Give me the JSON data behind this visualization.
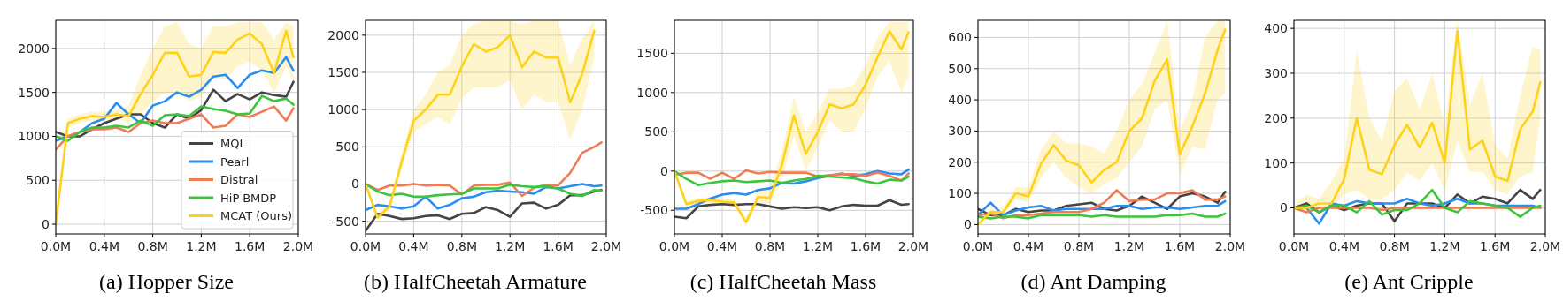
{
  "chart_data": [
    {
      "type": "line",
      "title": "(a) Hopper Size",
      "x": [
        0,
        0.1,
        0.2,
        0.3,
        0.4,
        0.5,
        0.6,
        0.7,
        0.8,
        0.9,
        1.0,
        1.1,
        1.2,
        1.3,
        1.4,
        1.5,
        1.6,
        1.7,
        1.8,
        1.9,
        1.96
      ],
      "xlim": [
        0,
        2
      ],
      "xticks": [
        {
          "value": 0,
          "label": "0.0M"
        },
        {
          "value": 0.4,
          "label": "0.4M"
        },
        {
          "value": 0.8,
          "label": "0.8M"
        },
        {
          "value": 1.2,
          "label": "1.2M"
        },
        {
          "value": 1.6,
          "label": "1.6M"
        },
        {
          "value": 2.0,
          "label": "2.0M"
        }
      ],
      "ylim": [
        -110,
        2320
      ],
      "yticks": [
        0,
        500,
        1000,
        1500,
        2000
      ],
      "grid": true,
      "legend": "bottom right",
      "marker": "none",
      "line_style": "solid",
      "series": [
        {
          "name": "MQL",
          "color": "#444444",
          "values": [
            1050,
            1000,
            1000,
            1080,
            1150,
            1200,
            1250,
            1250,
            1150,
            1100,
            1250,
            1200,
            1300,
            1530,
            1400,
            1480,
            1420,
            1500,
            1470,
            1450,
            1620
          ]
        },
        {
          "name": "Pearl",
          "color": "#2a8ef0",
          "values": [
            950,
            1000,
            1050,
            1150,
            1200,
            1380,
            1250,
            1150,
            1350,
            1400,
            1500,
            1450,
            1530,
            1680,
            1700,
            1550,
            1700,
            1750,
            1720,
            1900,
            1750
          ]
        },
        {
          "name": "Distral",
          "color": "#f07c55",
          "values": [
            850,
            1000,
            1050,
            1080,
            1080,
            1100,
            1050,
            1150,
            1180,
            1150,
            1150,
            1200,
            1250,
            1100,
            1120,
            1250,
            1220,
            1280,
            1340,
            1180,
            1320
          ]
        },
        {
          "name": "HiP-BMDP",
          "color": "#3cc43c",
          "values": [
            1000,
            950,
            1050,
            1100,
            1100,
            1120,
            1100,
            1180,
            1120,
            1240,
            1250,
            1230,
            1340,
            1310,
            1290,
            1250,
            1260,
            1460,
            1400,
            1430,
            1360
          ]
        },
        {
          "name": "MCAT (Ours)",
          "color": "#ffd21a",
          "values": [
            0,
            1150,
            1200,
            1230,
            1220,
            1250,
            1230,
            1480,
            1700,
            1950,
            1950,
            1680,
            1700,
            1960,
            1950,
            2100,
            2170,
            2050,
            1720,
            2200,
            1900
          ],
          "lower": [
            0,
            1100,
            1150,
            1180,
            1170,
            1200,
            1150,
            1250,
            1400,
            1500,
            1500,
            1400,
            1450,
            1650,
            1650,
            1800,
            1850,
            1750,
            1500,
            1800,
            1600
          ],
          "upper": [
            0,
            1200,
            1250,
            1280,
            1280,
            1300,
            1350,
            1700,
            2000,
            2250,
            2300,
            2050,
            2000,
            2250,
            2250,
            2300,
            2300,
            2300,
            2100,
            2300,
            2250
          ]
        }
      ]
    },
    {
      "type": "line",
      "title": "(b) HalfCheetah Armature",
      "x": [
        0,
        0.1,
        0.2,
        0.3,
        0.4,
        0.5,
        0.6,
        0.7,
        0.8,
        0.9,
        1.0,
        1.1,
        1.2,
        1.3,
        1.4,
        1.5,
        1.6,
        1.7,
        1.8,
        1.9,
        1.96
      ],
      "xlim": [
        0,
        2
      ],
      "xticks": [
        {
          "value": 0,
          "label": "0.0M"
        },
        {
          "value": 0.4,
          "label": "0.4M"
        },
        {
          "value": 0.8,
          "label": "0.8M"
        },
        {
          "value": 1.2,
          "label": "1.2M"
        },
        {
          "value": 1.6,
          "label": "1.6M"
        },
        {
          "value": 2.0,
          "label": "2.0M"
        }
      ],
      "ylim": [
        -670,
        2200
      ],
      "yticks": [
        -500,
        0,
        500,
        1000,
        1500,
        2000
      ],
      "grid": true,
      "marker": "none",
      "line_style": "solid",
      "series": [
        {
          "color": "#444444",
          "values": [
            -630,
            -400,
            -430,
            -470,
            -460,
            -430,
            -420,
            -470,
            -400,
            -390,
            -310,
            -350,
            -440,
            -260,
            -250,
            -330,
            -280,
            -150,
            -150,
            -100,
            -80
          ]
        },
        {
          "color": "#2a8ef0",
          "values": [
            -350,
            -280,
            -300,
            -330,
            -300,
            -170,
            -330,
            -280,
            -190,
            -170,
            -110,
            -90,
            -100,
            -110,
            -130,
            -40,
            -60,
            -30,
            0,
            -30,
            -20
          ]
        },
        {
          "color": "#f07c55",
          "values": [
            0,
            -80,
            -20,
            -20,
            0,
            -20,
            -10,
            -20,
            -140,
            -20,
            -10,
            -10,
            20,
            -160,
            -50,
            -10,
            -20,
            150,
            420,
            500,
            560
          ]
        },
        {
          "color": "#3cc43c",
          "values": [
            0,
            -100,
            -150,
            -130,
            -170,
            -170,
            -150,
            -140,
            -130,
            -60,
            -60,
            -60,
            -10,
            -30,
            -40,
            -30,
            -60,
            -130,
            -160,
            -80,
            -90
          ]
        },
        {
          "color": "#ffd21a",
          "values": [
            0,
            -450,
            -300,
            300,
            850,
            1000,
            1200,
            1200,
            1580,
            1880,
            1780,
            1840,
            2000,
            1570,
            1780,
            1700,
            1700,
            1100,
            1480,
            2060,
            null
          ],
          "lower": [
            0,
            -500,
            -350,
            200,
            700,
            800,
            900,
            800,
            1150,
            1300,
            1300,
            1300,
            1400,
            1000,
            1200,
            1100,
            1100,
            600,
            1000,
            1700,
            null
          ],
          "upper": [
            0,
            -400,
            -250,
            400,
            1000,
            1200,
            1500,
            1600,
            2000,
            2150,
            2190,
            2190,
            2190,
            2150,
            2190,
            2190,
            2190,
            1600,
            1950,
            2190,
            null
          ]
        }
      ]
    },
    {
      "type": "line",
      "title": "(c) HalfCheetah Mass",
      "x": [
        0,
        0.1,
        0.2,
        0.3,
        0.4,
        0.5,
        0.6,
        0.7,
        0.8,
        0.9,
        1.0,
        1.1,
        1.2,
        1.3,
        1.4,
        1.5,
        1.6,
        1.7,
        1.8,
        1.9,
        1.96
      ],
      "xlim": [
        0,
        2
      ],
      "xticks": [
        {
          "value": 0,
          "label": "0.0M"
        },
        {
          "value": 0.4,
          "label": "0.4M"
        },
        {
          "value": 0.8,
          "label": "0.8M"
        },
        {
          "value": 1.2,
          "label": "1.2M"
        },
        {
          "value": 1.6,
          "label": "1.6M"
        },
        {
          "value": 2.0,
          "label": "2.0M"
        }
      ],
      "ylim": [
        -800,
        1920
      ],
      "yticks": [
        -500,
        0,
        500,
        1000,
        1500
      ],
      "grid": true,
      "marker": "none",
      "line_style": "solid",
      "series": [
        {
          "color": "#444444",
          "values": [
            -580,
            -600,
            -450,
            -430,
            -420,
            -430,
            -420,
            -420,
            -450,
            -480,
            -460,
            -470,
            -460,
            -500,
            -450,
            -430,
            -440,
            -440,
            -370,
            -430,
            -420
          ]
        },
        {
          "color": "#2a8ef0",
          "values": [
            -480,
            -480,
            -420,
            -350,
            -300,
            -280,
            -300,
            -240,
            -220,
            -150,
            -160,
            -130,
            -90,
            -60,
            -30,
            -60,
            -40,
            0,
            -30,
            -40,
            20
          ]
        },
        {
          "color": "#f07c55",
          "values": [
            -50,
            -20,
            -20,
            -100,
            -20,
            -100,
            10,
            -30,
            -10,
            -20,
            -20,
            -20,
            -70,
            -50,
            -40,
            -40,
            -60,
            -20,
            -60,
            -120,
            -30
          ]
        },
        {
          "color": "#3cc43c",
          "values": [
            0,
            -100,
            -180,
            -150,
            -130,
            -120,
            -140,
            -130,
            -120,
            -150,
            -120,
            -100,
            -60,
            -70,
            -80,
            -90,
            -130,
            -160,
            -110,
            -120,
            -70
          ]
        },
        {
          "color": "#ffd21a",
          "values": [
            0,
            -420,
            -380,
            -370,
            -390,
            -400,
            -650,
            -330,
            -340,
            80,
            710,
            220,
            500,
            850,
            800,
            850,
            1100,
            1450,
            1780,
            1550,
            1770
          ],
          "lower": [
            0,
            -460,
            -420,
            -410,
            -430,
            -440,
            -700,
            -400,
            -420,
            -100,
            450,
            0,
            300,
            650,
            500,
            500,
            800,
            1200,
            1400,
            1000,
            1200
          ],
          "upper": [
            0,
            -380,
            -340,
            -330,
            -350,
            -360,
            -600,
            -250,
            -200,
            250,
            950,
            500,
            750,
            1050,
            1050,
            1100,
            1350,
            1700,
            1900,
            1900,
            1900
          ]
        }
      ]
    },
    {
      "type": "line",
      "title": "(d) Ant Damping",
      "x": [
        0,
        0.1,
        0.2,
        0.3,
        0.4,
        0.5,
        0.6,
        0.7,
        0.8,
        0.9,
        1.0,
        1.1,
        1.2,
        1.3,
        1.4,
        1.5,
        1.6,
        1.7,
        1.8,
        1.9,
        1.96
      ],
      "xlim": [
        0,
        2
      ],
      "xticks": [
        {
          "value": 0,
          "label": "0.0M"
        },
        {
          "value": 0.4,
          "label": "0.4M"
        },
        {
          "value": 0.8,
          "label": "0.8M"
        },
        {
          "value": 1.2,
          "label": "1.2M"
        },
        {
          "value": 1.6,
          "label": "1.6M"
        },
        {
          "value": 2.0,
          "label": "2.0M"
        }
      ],
      "ylim": [
        -30,
        655
      ],
      "yticks": [
        0,
        100,
        200,
        300,
        400,
        500,
        600
      ],
      "grid": true,
      "marker": "none",
      "line_style": "solid",
      "series": [
        {
          "color": "#444444",
          "values": [
            50,
            30,
            30,
            50,
            40,
            45,
            45,
            60,
            65,
            70,
            50,
            45,
            60,
            90,
            70,
            50,
            90,
            100,
            90,
            70,
            105
          ]
        },
        {
          "color": "#2a8ef0",
          "values": [
            30,
            70,
            30,
            45,
            55,
            60,
            45,
            50,
            50,
            50,
            50,
            60,
            60,
            50,
            55,
            55,
            50,
            55,
            60,
            60,
            75
          ]
        },
        {
          "color": "#f07c55",
          "values": [
            30,
            35,
            20,
            30,
            30,
            35,
            40,
            40,
            40,
            50,
            70,
            110,
            75,
            80,
            80,
            100,
            100,
            110,
            80,
            80,
            90
          ]
        },
        {
          "color": "#3cc43c",
          "values": [
            25,
            20,
            25,
            25,
            20,
            30,
            30,
            30,
            30,
            25,
            30,
            25,
            25,
            25,
            25,
            30,
            30,
            35,
            25,
            25,
            35
          ]
        },
        {
          "color": "#ffd21a",
          "values": [
            0,
            40,
            40,
            100,
            90,
            195,
            255,
            205,
            190,
            135,
            175,
            200,
            300,
            340,
            460,
            530,
            225,
            315,
            420,
            560,
            625
          ],
          "lower": [
            0,
            30,
            30,
            80,
            70,
            150,
            200,
            150,
            120,
            100,
            130,
            150,
            200,
            250,
            370,
            400,
            160,
            250,
            240,
            400,
            420
          ],
          "upper": [
            0,
            55,
            55,
            120,
            120,
            240,
            300,
            260,
            260,
            250,
            230,
            300,
            400,
            450,
            550,
            655,
            300,
            400,
            600,
            655,
            655
          ]
        }
      ]
    },
    {
      "type": "line",
      "title": "(e) Ant Cripple",
      "x": [
        0,
        0.1,
        0.2,
        0.3,
        0.4,
        0.5,
        0.6,
        0.7,
        0.8,
        0.9,
        1.0,
        1.1,
        1.2,
        1.3,
        1.4,
        1.5,
        1.6,
        1.7,
        1.8,
        1.9,
        1.96
      ],
      "xlim": [
        0,
        2
      ],
      "xticks": [
        {
          "value": 0,
          "label": "0.0M"
        },
        {
          "value": 0.4,
          "label": "0.4M"
        },
        {
          "value": 0.8,
          "label": "0.8M"
        },
        {
          "value": 1.2,
          "label": "1.2M"
        },
        {
          "value": 1.6,
          "label": "1.6M"
        },
        {
          "value": 2.0,
          "label": "2.0M"
        }
      ],
      "ylim": [
        -58,
        418
      ],
      "yticks": [
        0,
        100,
        200,
        300,
        400
      ],
      "grid": true,
      "marker": "none",
      "line_style": "solid",
      "series": [
        {
          "color": "#444444",
          "values": [
            0,
            10,
            -10,
            5,
            -5,
            5,
            10,
            10,
            -30,
            10,
            10,
            10,
            0,
            30,
            10,
            25,
            20,
            10,
            40,
            20,
            40
          ]
        },
        {
          "color": "#2a8ef0",
          "values": [
            0,
            0,
            -35,
            10,
            5,
            15,
            10,
            10,
            10,
            20,
            10,
            5,
            10,
            20,
            10,
            10,
            5,
            5,
            5,
            5,
            0
          ]
        },
        {
          "color": "#f07c55",
          "values": [
            0,
            -10,
            0,
            0,
            0,
            0,
            0,
            -5,
            0,
            0,
            0,
            0,
            0,
            0,
            0,
            0,
            0,
            0,
            0,
            0,
            0
          ]
        },
        {
          "color": "#3cc43c",
          "values": [
            0,
            5,
            -10,
            5,
            5,
            -10,
            15,
            -15,
            -5,
            -5,
            10,
            40,
            0,
            -10,
            15,
            10,
            5,
            0,
            -20,
            0,
            5
          ]
        },
        {
          "color": "#ffd21a",
          "values": [
            0,
            0,
            10,
            10,
            65,
            200,
            85,
            75,
            140,
            185,
            135,
            190,
            100,
            395,
            130,
            150,
            70,
            60,
            175,
            215,
            280
          ],
          "lower": [
            -5,
            -10,
            0,
            0,
            30,
            40,
            20,
            20,
            40,
            80,
            60,
            100,
            40,
            150,
            80,
            80,
            40,
            30,
            70,
            80,
            200
          ],
          "upper": [
            5,
            30,
            20,
            60,
            110,
            350,
            200,
            150,
            260,
            290,
            220,
            300,
            180,
            418,
            230,
            300,
            140,
            110,
            250,
            360,
            350
          ]
        }
      ]
    }
  ]
}
